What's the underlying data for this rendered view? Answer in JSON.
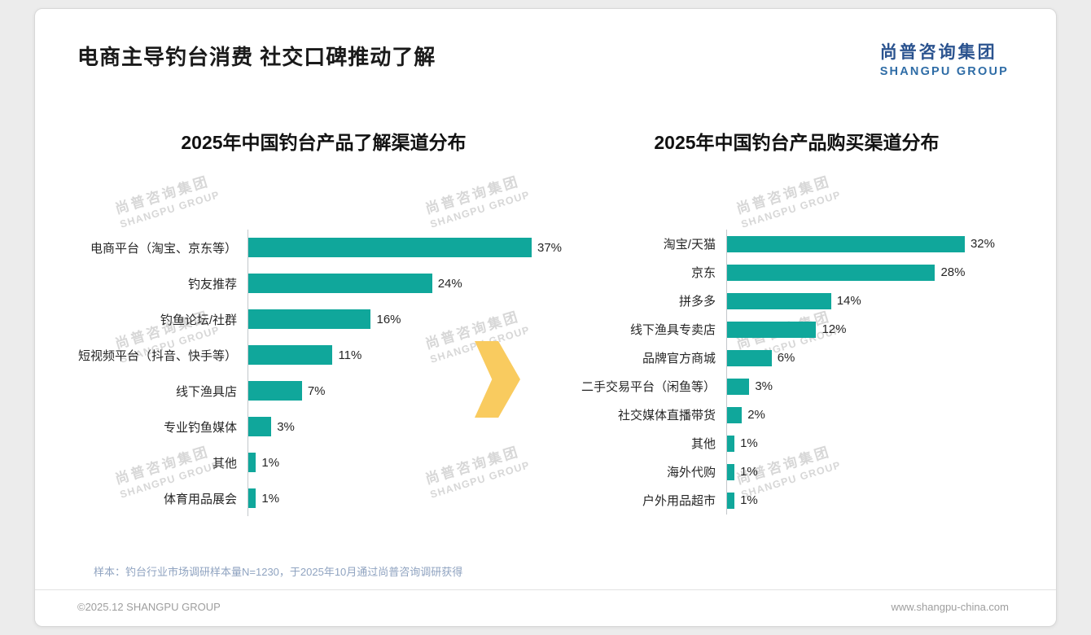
{
  "page": {
    "title": "电商主导钓台消费 社交口碑推动了解",
    "logo": {
      "cn": "尚普咨询集团",
      "en": "SHANGPU GROUP"
    },
    "watermark": {
      "cn": "尚普咨询集团",
      "en": "SHANGPU GROUP"
    },
    "footer": {
      "sample_note": "样本：钓台行业市场调研样本量N=1230，于2025年10月通过尚普咨询调研获得",
      "copyright": "©2025.12 SHANGPU GROUP",
      "website": "www.shangpu-china.com"
    },
    "colors": {
      "bar": "#10A79B",
      "arrow": "#F9CB5F",
      "logo_blue": "#2B538F",
      "note_text": "#8FA3C0"
    }
  },
  "chart_data": [
    {
      "type": "bar",
      "orientation": "horizontal",
      "title": "2025年中国钓台产品了解渠道分布",
      "categories": [
        "电商平台（淘宝、京东等）",
        "钓友推荐",
        "钓鱼论坛/社群",
        "短视频平台（抖音、快手等）",
        "线下渔具店",
        "专业钓鱼媒体",
        "其他",
        "体育用品展会"
      ],
      "values": [
        37,
        24,
        16,
        11,
        7,
        3,
        1,
        1
      ],
      "unit": "%",
      "xlim": [
        0,
        40
      ],
      "legend": false,
      "grid": false
    },
    {
      "type": "bar",
      "orientation": "horizontal",
      "title": "2025年中国钓台产品购买渠道分布",
      "categories": [
        "淘宝/天猫",
        "京东",
        "拼多多",
        "线下渔具专卖店",
        "品牌官方商城",
        "二手交易平台（闲鱼等）",
        "社交媒体直播带货",
        "其他",
        "海外代购",
        "户外用品超市"
      ],
      "values": [
        32,
        28,
        14,
        12,
        6,
        3,
        2,
        1,
        1,
        1
      ],
      "unit": "%",
      "xlim": [
        0,
        35
      ],
      "legend": false,
      "grid": false
    }
  ]
}
